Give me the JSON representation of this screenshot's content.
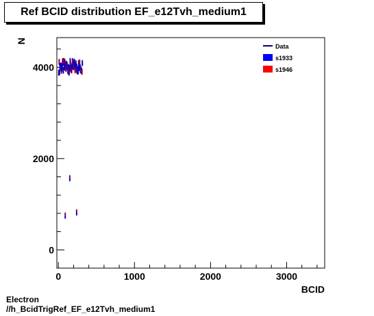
{
  "title": "Ref BCID distribution EF_e12Tvh_medium1",
  "footer": {
    "line1": "Electron",
    "line2": "//h_BcidTrigRef_EF_e12Tvh_medium1"
  },
  "chart_data": {
    "type": "scatter",
    "xlabel": "BCID",
    "ylabel": "N",
    "xlim": [
      -20,
      3500
    ],
    "ylim": [
      -400,
      4650
    ],
    "xticks": [
      0,
      1000,
      2000,
      3000
    ],
    "yticks": [
      0,
      2000,
      4000
    ],
    "grid": false,
    "legend_position": "top-right",
    "series": [
      {
        "name": "Data",
        "color": "#000080",
        "cluster": {
          "x_start": 5,
          "x_end": 315,
          "x_step": 5,
          "y_center": 4010,
          "y_spread": 130
        },
        "points": [
          [
            90,
            750
          ],
          [
            150,
            1570
          ],
          [
            240,
            820
          ]
        ]
      },
      {
        "name": "s1933",
        "color": "#0000ff"
      },
      {
        "name": "s1946",
        "color": "#ff0000"
      }
    ]
  }
}
